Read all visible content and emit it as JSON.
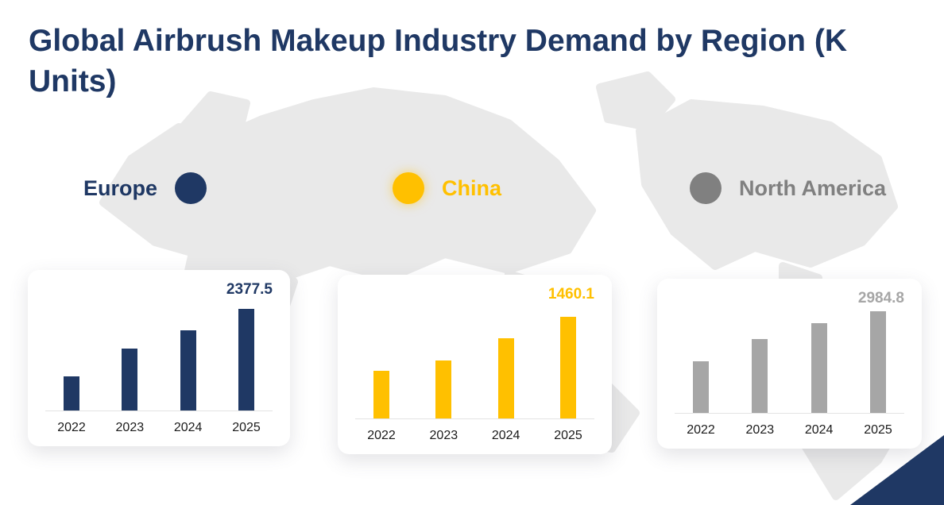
{
  "title": "Global Airbrush Makeup Industry Demand by Region (K Units)",
  "legend": [
    {
      "label": "Europe",
      "color": "#1F3864"
    },
    {
      "label": "China",
      "color": "#FFC000"
    },
    {
      "label": "North America",
      "color": "#808080"
    }
  ],
  "chart_data": [
    {
      "type": "bar",
      "series_name": "Europe",
      "categories": [
        "2022",
        "2023",
        "2024",
        "2025"
      ],
      "values": [
        790,
        1440,
        1870,
        2377.5
      ],
      "data_label": "2377.5",
      "color": "#1F3864",
      "ylim": [
        0,
        2500
      ],
      "grid": false,
      "legend_position": "none"
    },
    {
      "type": "bar",
      "series_name": "China",
      "categories": [
        "2022",
        "2023",
        "2024",
        "2025"
      ],
      "values": [
        690,
        830,
        1150,
        1460.1
      ],
      "data_label": "1460.1",
      "color": "#FFC000",
      "ylim": [
        0,
        1550
      ],
      "grid": false,
      "legend_position": "none"
    },
    {
      "type": "bar",
      "series_name": "North America",
      "categories": [
        "2022",
        "2023",
        "2024",
        "2025"
      ],
      "values": [
        1520,
        2180,
        2630,
        2984.8
      ],
      "data_label": "2984.8",
      "color": "#A6A6A6",
      "ylim": [
        0,
        3100
      ],
      "grid": false,
      "legend_position": "none"
    }
  ],
  "colors": {
    "title": "#1F3864",
    "map_fill": "#E9E9E9",
    "card_bg": "#FFFFFF",
    "axis_line": "#E3E3E3",
    "year_text": "#1A1A1A",
    "corner_accent": "#1F3864"
  }
}
